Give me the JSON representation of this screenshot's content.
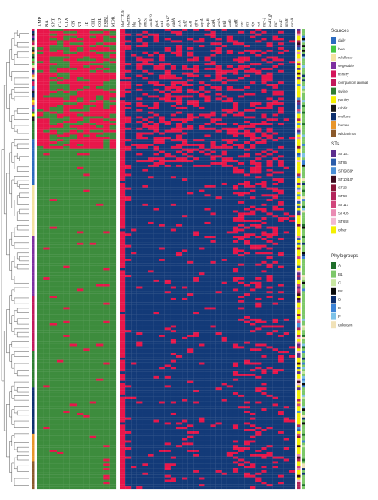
{
  "chart_data": {
    "type": "heatmap",
    "title": "",
    "resistance_phenotypes": {
      "labels": [
        "AMP",
        "NA",
        "SXT",
        "CAZ",
        "CTX",
        "CN",
        "ST",
        "TE",
        "CHL",
        "COL",
        "ESBL",
        "MDR"
      ],
      "colors": {
        "resistant": "#e8164a",
        "susceptible": "#3d8c3d"
      }
    },
    "resistance_genes": {
      "labels": [
        "blaCTX-M",
        "blaTEM",
        "bla",
        "mphA",
        "qnrS1",
        "qnrB19",
        "floR",
        "tetA",
        "dfrA17",
        "aadA",
        "strA",
        "sul2",
        "sul1",
        "dfrA",
        "oqxA",
        "oqxB",
        "catA",
        "cmlA",
        "tetB",
        "catB",
        "catR",
        "aac",
        "acc",
        "sip",
        "vat",
        "mcr-1",
        "ipaH_ff",
        "mcr",
        "toxE",
        "rmtB",
        "mrkA"
      ],
      "colors": {
        "present": "#e8164a",
        "absent": "#133a78"
      }
    },
    "row_count": 200,
    "legends": [
      {
        "title": "Sources",
        "items": [
          {
            "label": "daily",
            "color": "#2c6bbf"
          },
          {
            "label": "beef",
            "color": "#43c743"
          },
          {
            "label": "wild boar",
            "color": "#f3e2a0"
          },
          {
            "label": "vegetable",
            "color": "#7e2fa0"
          },
          {
            "label": "fishery",
            "color": "#d4145a"
          },
          {
            "label": "companion animal",
            "color": "#c2185b"
          },
          {
            "label": "swine",
            "color": "#2e7d32"
          },
          {
            "label": "poultry",
            "color": "#f4f000"
          },
          {
            "label": "rabbit",
            "color": "#1a1a1a"
          },
          {
            "label": "mollusc",
            "color": "#0d2f6e"
          },
          {
            "label": "human",
            "color": "#e8952a"
          },
          {
            "label": "wild animal",
            "color": "#8b5a2b"
          }
        ]
      },
      {
        "title": "STs",
        "items": [
          {
            "label": "ST131",
            "color": "#5b2d8e"
          },
          {
            "label": "ST95",
            "color": "#2a5caa"
          },
          {
            "label": "ST69/69*",
            "color": "#4a8fd6"
          },
          {
            "label": "ST10/10*",
            "color": "#3d0b1e"
          },
          {
            "label": "ST23",
            "color": "#8a1538"
          },
          {
            "label": "ST58",
            "color": "#b3245b"
          },
          {
            "label": "ST117",
            "color": "#d1467c"
          },
          {
            "label": "ST405",
            "color": "#e98bb3"
          },
          {
            "label": "ST648",
            "color": "#f2b8d2"
          },
          {
            "label": "other",
            "color": "#f4f000"
          }
        ]
      },
      {
        "title": "Phylogroups",
        "items": [
          {
            "label": "A",
            "color": "#1f6e2a"
          },
          {
            "label": "B1",
            "color": "#7dc86a"
          },
          {
            "label": "C",
            "color": "#c8e6a0"
          },
          {
            "label": "B2",
            "color": "#0a0a0a"
          },
          {
            "label": "D",
            "color": "#0d2f6e"
          },
          {
            "label": "E",
            "color": "#3b82d6"
          },
          {
            "label": "F",
            "color": "#7fc3e8"
          },
          {
            "label": "unknown",
            "color": "#f1e2b8"
          }
        ]
      }
    ]
  }
}
